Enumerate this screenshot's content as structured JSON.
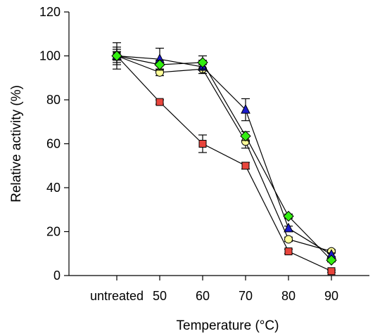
{
  "chart_data": {
    "type": "line",
    "title": "",
    "xlabel": "Temperature (°C)",
    "ylabel": "Relative activity (%)",
    "categories": [
      "untreated",
      "50",
      "60",
      "70",
      "80",
      "90"
    ],
    "ylim": [
      0,
      120
    ],
    "yticks": [
      0,
      20,
      40,
      60,
      80,
      100,
      120
    ],
    "grid": false,
    "legend": "none",
    "series": [
      {
        "marker": "square",
        "color": "#e8453c",
        "values": [
          100,
          79,
          60,
          50,
          11,
          2
        ],
        "errors": [
          2,
          1,
          4,
          1.5,
          1,
          0.5
        ]
      },
      {
        "marker": "circle",
        "color": "#ffff99",
        "values": [
          100,
          92.5,
          94,
          61,
          16.5,
          11
        ],
        "errors": [
          4,
          1.5,
          2,
          3,
          1,
          0.8
        ]
      },
      {
        "marker": "triangle",
        "color": "#1a1acc",
        "values": [
          100,
          98.5,
          95,
          75.5,
          21.5,
          9.5
        ],
        "errors": [
          6,
          5,
          3,
          5,
          1,
          0.8
        ]
      },
      {
        "marker": "diamond",
        "color": "#33ee11",
        "values": [
          100,
          96,
          97,
          63.5,
          27,
          7
        ],
        "errors": [
          3,
          2,
          3,
          2,
          1,
          0.8
        ]
      }
    ]
  }
}
